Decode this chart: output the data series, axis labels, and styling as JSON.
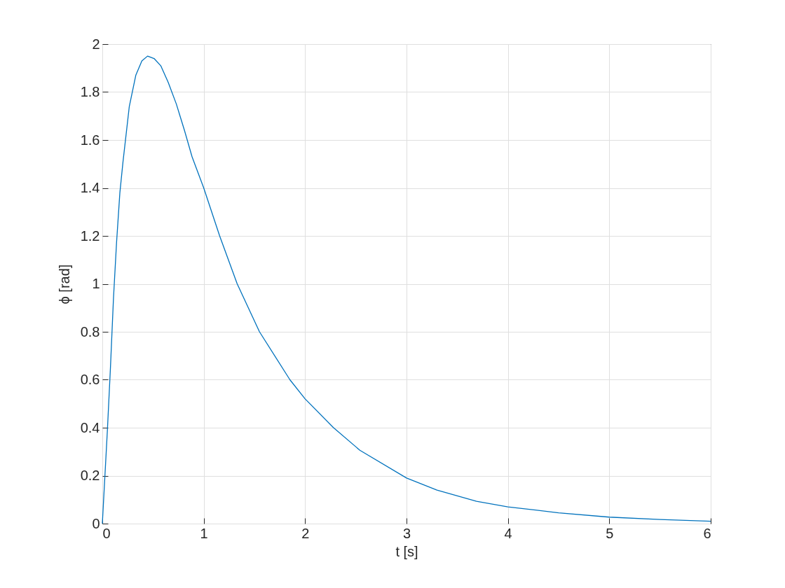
{
  "chart_data": {
    "type": "line",
    "xlabel": "t [s]",
    "ylabel": "ϕ [rad]",
    "x": [
      0,
      0.05,
      0.08,
      0.11,
      0.14,
      0.173,
      0.204,
      0.266,
      0.33,
      0.39,
      0.446,
      0.51,
      0.576,
      0.65,
      0.73,
      0.81,
      0.885,
      1.0,
      1.157,
      1.33,
      1.55,
      1.85,
      2.0,
      2.28,
      2.54,
      3.0,
      3.3,
      3.69,
      4.0,
      4.5,
      5.0,
      5.5,
      6.0
    ],
    "series": [
      {
        "color": "#0072bd",
        "values": [
          0,
          0.39,
          0.65,
          0.94,
          1.17,
          1.38,
          1.51,
          1.74,
          1.87,
          1.93,
          1.95,
          1.94,
          1.91,
          1.84,
          1.75,
          1.64,
          1.53,
          1.4,
          1.2,
          1.0,
          0.8,
          0.6,
          0.52,
          0.4,
          0.306,
          0.19,
          0.14,
          0.093,
          0.07,
          0.045,
          0.027,
          0.017,
          0.01
        ]
      }
    ],
    "xlim": [
      0,
      6
    ],
    "xticks": [
      0,
      1,
      2,
      3,
      4,
      5,
      6
    ],
    "ylim": [
      0,
      2
    ],
    "yticks": [
      0,
      0.2,
      0.4,
      0.6,
      0.8,
      1,
      1.2,
      1.4,
      1.6,
      1.8,
      2
    ],
    "grid": true,
    "line_style": "solid",
    "marker": "none"
  }
}
